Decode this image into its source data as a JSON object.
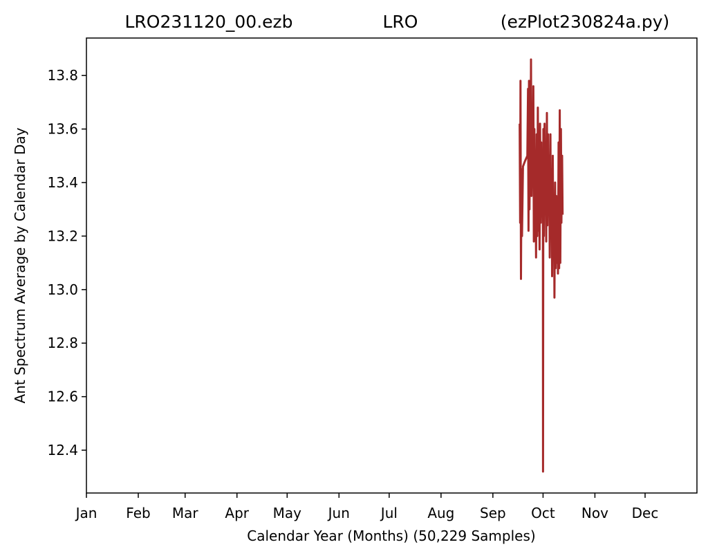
{
  "chart_data": {
    "type": "line",
    "title_parts": [
      "LRO231120_00.ezb",
      "LRO",
      "(ezPlot230824a.py)"
    ],
    "xlabel": "Calendar Year (Months) (50,229 Samples)",
    "ylabel": "Ant Spectrum Average by Calendar Day",
    "x_ticks": [
      "Jan",
      "Feb",
      "Mar",
      "Apr",
      "May",
      "Jun",
      "Jul",
      "Aug",
      "Sep",
      "Oct",
      "Nov",
      "Dec"
    ],
    "x_tick_days": [
      0,
      31,
      59,
      90,
      120,
      151,
      181,
      212,
      243,
      273,
      304,
      334
    ],
    "xlim": [
      0,
      365
    ],
    "y_ticks": [
      "12.4",
      "12.6",
      "12.8",
      "13.0",
      "13.2",
      "13.4",
      "13.6",
      "13.8"
    ],
    "ylim": [
      12.24,
      13.94
    ],
    "grid": false,
    "colors": {
      "series": "#a52a2a",
      "axes": "#000000"
    },
    "series": [
      {
        "x": [
          259.0,
          259.3,
          259.5,
          259.8,
          260.1,
          260.4,
          261.0,
          262.2,
          263.6,
          264.0,
          264.3,
          264.6,
          264.9,
          265.2,
          265.5,
          265.8,
          266.1,
          266.5,
          266.9,
          267.2,
          267.5,
          267.8,
          268.1,
          268.4,
          268.8,
          269.2,
          269.5,
          269.9,
          270.2,
          270.5,
          270.9,
          271.2,
          271.6,
          271.9,
          272.2,
          272.6,
          272.9,
          273.0,
          273.2,
          273.5,
          273.9,
          274.2,
          274.6,
          274.9,
          275.3,
          275.6,
          276.0,
          276.3,
          276.7,
          277.0,
          277.4,
          277.7,
          278.1,
          278.4,
          278.8,
          279.1,
          279.5,
          279.8,
          280.2,
          280.5,
          280.9,
          281.2,
          281.6,
          281.9,
          282.3,
          282.6,
          283.0,
          283.3,
          283.7,
          284.0,
          284.4,
          284.7
        ],
        "y": [
          13.62,
          13.25,
          13.78,
          13.04,
          13.45,
          13.2,
          13.46,
          13.48,
          13.5,
          13.75,
          13.22,
          13.78,
          13.3,
          13.6,
          13.4,
          13.86,
          13.35,
          13.55,
          13.5,
          13.76,
          13.18,
          13.6,
          13.3,
          13.5,
          13.12,
          13.58,
          13.2,
          13.68,
          13.22,
          13.5,
          13.15,
          13.62,
          13.25,
          13.55,
          13.3,
          13.48,
          13.22,
          12.32,
          13.6,
          13.2,
          13.62,
          13.35,
          13.52,
          13.18,
          13.66,
          13.24,
          13.58,
          13.3,
          13.5,
          13.12,
          13.58,
          13.25,
          13.45,
          13.05,
          13.5,
          13.15,
          13.35,
          12.97,
          13.4,
          13.08,
          13.35,
          13.1,
          13.3,
          13.06,
          13.55,
          13.08,
          13.67,
          13.1,
          13.6,
          13.25,
          13.5,
          13.28
        ]
      }
    ]
  }
}
